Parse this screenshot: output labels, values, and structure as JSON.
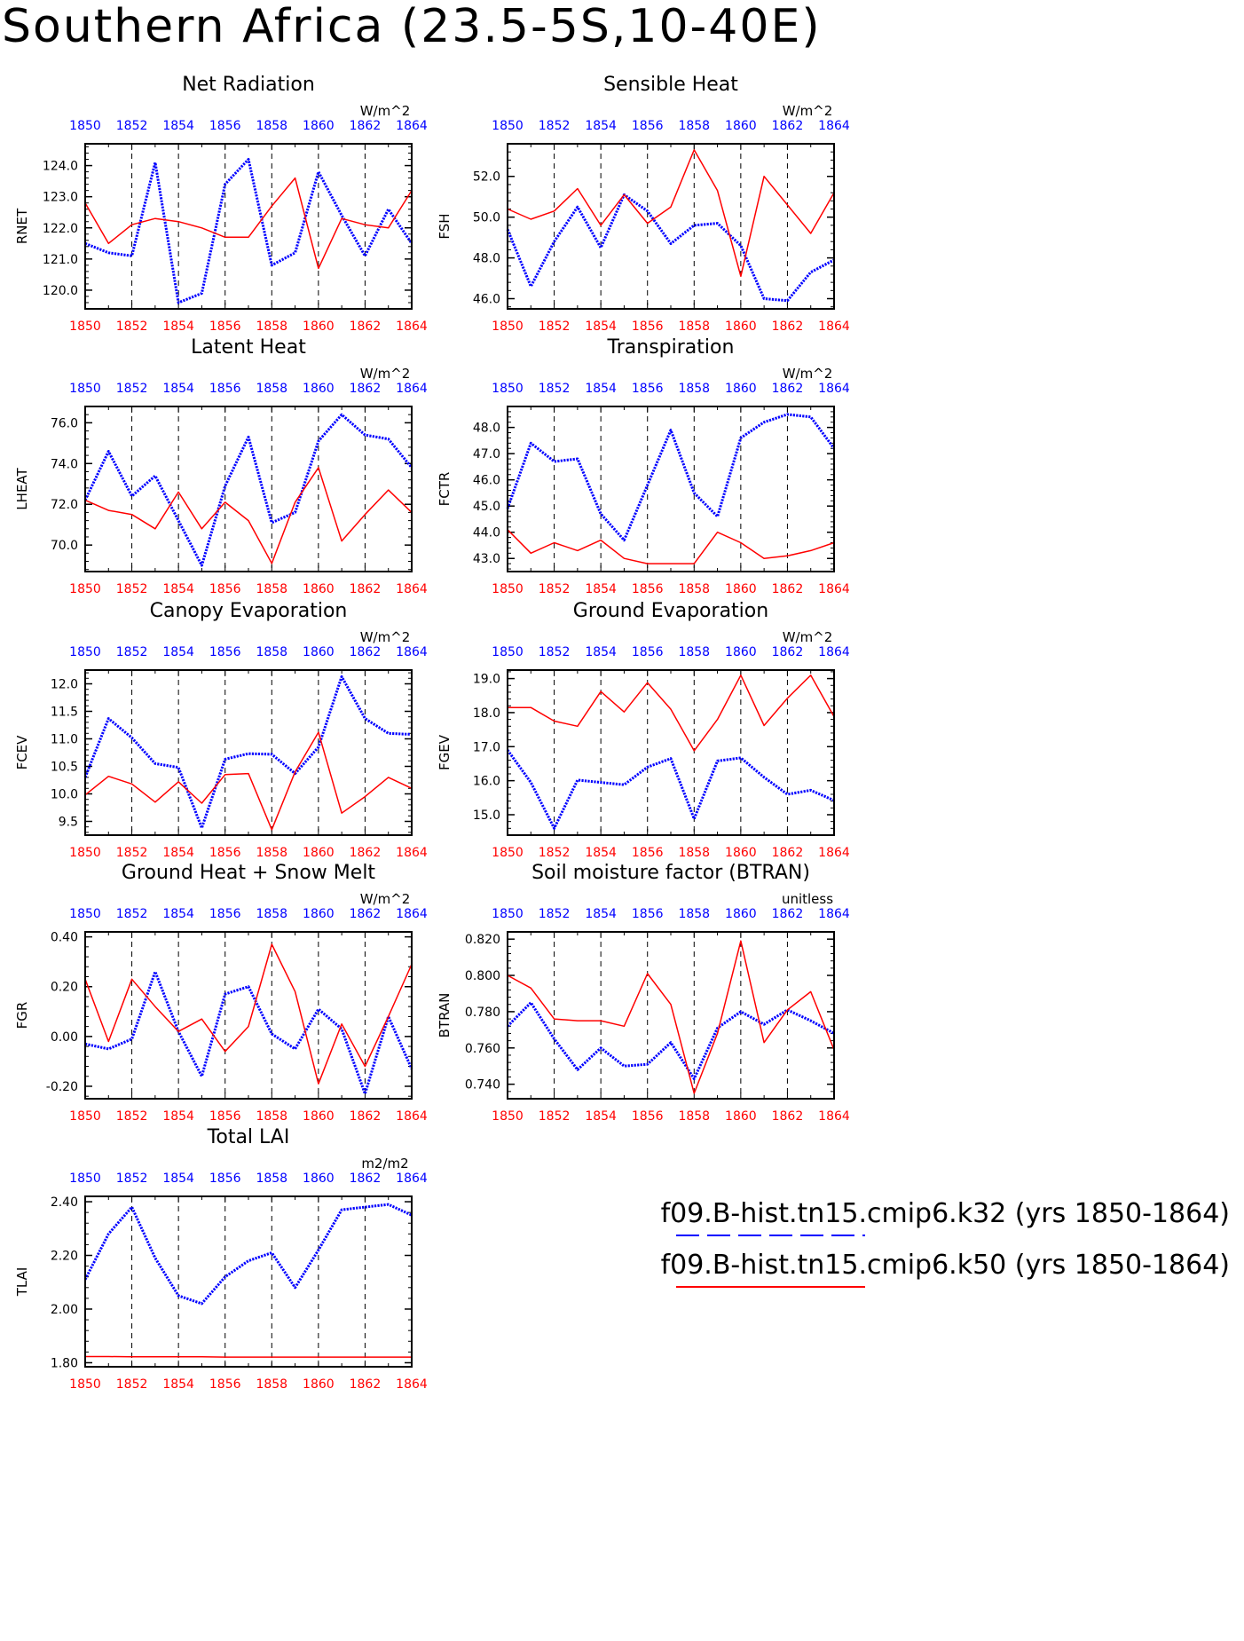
{
  "page": {
    "title": "Southern Africa (23.5-5S,10-40E)"
  },
  "legend": {
    "items": [
      {
        "label": "f09.B-hist.tn15.cmip6.k32 (yrs 1850-1864)",
        "color": "#0000ff",
        "style": "dashed"
      },
      {
        "label": "f09.B-hist.tn15.cmip6.k50 (yrs 1850-1864)",
        "color": "#ff0000",
        "style": "solid"
      }
    ]
  },
  "chart_data": [
    {
      "type": "line",
      "title": "Net Radiation",
      "ylabel": "RNET",
      "units": "W/m^2",
      "ylim": [
        119.4,
        124.7
      ],
      "yticks": [
        120.0,
        121.0,
        122.0,
        123.0,
        124.0
      ],
      "ytick_labels": [
        "120.0",
        "121.0",
        "122.0",
        "123.0",
        "124.0"
      ],
      "x": [
        1850,
        1851,
        1852,
        1853,
        1854,
        1855,
        1856,
        1857,
        1858,
        1859,
        1860,
        1861,
        1862,
        1863,
        1864
      ],
      "x_ticks": [
        1850,
        1852,
        1854,
        1856,
        1858,
        1860,
        1862,
        1864
      ],
      "series": [
        {
          "color": "#0000ff",
          "style": "dotted",
          "values": [
            121.5,
            121.2,
            121.1,
            124.1,
            119.6,
            119.9,
            123.4,
            124.2,
            120.8,
            121.2,
            123.8,
            122.4,
            121.1,
            122.6,
            121.5
          ]
        },
        {
          "color": "#ff0000",
          "style": "solid",
          "values": [
            122.8,
            121.5,
            122.1,
            122.3,
            122.2,
            122.0,
            121.7,
            121.7,
            122.7,
            123.6,
            120.7,
            122.3,
            122.1,
            122.0,
            123.2
          ]
        }
      ]
    },
    {
      "type": "line",
      "title": "Sensible Heat",
      "ylabel": "FSH",
      "units": "W/m^2",
      "ylim": [
        45.5,
        53.6
      ],
      "yticks": [
        46.0,
        48.0,
        50.0,
        52.0
      ],
      "ytick_labels": [
        "46.0",
        "48.0",
        "50.0",
        "52.0"
      ],
      "x": [
        1850,
        1851,
        1852,
        1853,
        1854,
        1855,
        1856,
        1857,
        1858,
        1859,
        1860,
        1861,
        1862,
        1863,
        1864
      ],
      "x_ticks": [
        1850,
        1852,
        1854,
        1856,
        1858,
        1860,
        1862,
        1864
      ],
      "series": [
        {
          "color": "#0000ff",
          "style": "dotted",
          "values": [
            49.4,
            46.6,
            48.8,
            50.5,
            48.5,
            51.1,
            50.3,
            48.7,
            49.6,
            49.7,
            48.6,
            46.0,
            45.9,
            47.3,
            47.9
          ]
        },
        {
          "color": "#ff0000",
          "style": "solid",
          "values": [
            50.4,
            49.9,
            50.3,
            51.4,
            49.6,
            51.1,
            49.7,
            50.5,
            53.3,
            51.3,
            47.1,
            52.0,
            50.6,
            49.2,
            51.2
          ]
        }
      ]
    },
    {
      "type": "line",
      "title": "Latent Heat",
      "ylabel": "LHEAT",
      "units": "W/m^2",
      "ylim": [
        68.7,
        76.8
      ],
      "yticks": [
        70.0,
        72.0,
        74.0,
        76.0
      ],
      "ytick_labels": [
        "70.0",
        "72.0",
        "74.0",
        "76.0"
      ],
      "x": [
        1850,
        1851,
        1852,
        1853,
        1854,
        1855,
        1856,
        1857,
        1858,
        1859,
        1860,
        1861,
        1862,
        1863,
        1864
      ],
      "x_ticks": [
        1850,
        1852,
        1854,
        1856,
        1858,
        1860,
        1862,
        1864
      ],
      "series": [
        {
          "color": "#0000ff",
          "style": "dotted",
          "values": [
            72.2,
            74.6,
            72.4,
            73.4,
            71.2,
            69.0,
            72.9,
            75.3,
            71.1,
            71.6,
            75.1,
            76.4,
            75.4,
            75.2,
            73.8
          ]
        },
        {
          "color": "#ff0000",
          "style": "solid",
          "values": [
            72.2,
            71.7,
            71.5,
            70.8,
            72.6,
            70.8,
            72.1,
            71.2,
            69.1,
            72.1,
            73.8,
            70.2,
            71.5,
            72.7,
            71.6
          ]
        }
      ]
    },
    {
      "type": "line",
      "title": "Transpiration",
      "ylabel": "FCTR",
      "units": "W/m^2",
      "ylim": [
        42.5,
        48.8
      ],
      "yticks": [
        43.0,
        44.0,
        45.0,
        46.0,
        47.0,
        48.0
      ],
      "ytick_labels": [
        "43.0",
        "44.0",
        "45.0",
        "46.0",
        "47.0",
        "48.0"
      ],
      "x": [
        1850,
        1851,
        1852,
        1853,
        1854,
        1855,
        1856,
        1857,
        1858,
        1859,
        1860,
        1861,
        1862,
        1863,
        1864
      ],
      "x_ticks": [
        1850,
        1852,
        1854,
        1856,
        1858,
        1860,
        1862,
        1864
      ],
      "series": [
        {
          "color": "#0000ff",
          "style": "dotted",
          "values": [
            44.9,
            47.4,
            46.7,
            46.8,
            44.7,
            43.7,
            45.8,
            47.9,
            45.5,
            44.6,
            47.6,
            48.2,
            48.5,
            48.4,
            47.2
          ]
        },
        {
          "color": "#ff0000",
          "style": "solid",
          "values": [
            44.1,
            43.2,
            43.6,
            43.3,
            43.7,
            43.0,
            42.8,
            42.8,
            42.8,
            44.0,
            43.6,
            43.0,
            43.1,
            43.3,
            43.6
          ]
        }
      ]
    },
    {
      "type": "line",
      "title": "Canopy Evaporation",
      "ylabel": "FCEV",
      "units": "W/m^2",
      "ylim": [
        9.25,
        12.25
      ],
      "yticks": [
        9.5,
        10.0,
        10.5,
        11.0,
        11.5,
        12.0
      ],
      "ytick_labels": [
        "9.5",
        "10.0",
        "10.5",
        "11.0",
        "11.5",
        "12.0"
      ],
      "x": [
        1850,
        1851,
        1852,
        1853,
        1854,
        1855,
        1856,
        1857,
        1858,
        1859,
        1860,
        1861,
        1862,
        1863,
        1864
      ],
      "x_ticks": [
        1850,
        1852,
        1854,
        1856,
        1858,
        1860,
        1862,
        1864
      ],
      "series": [
        {
          "color": "#0000ff",
          "style": "dotted",
          "values": [
            10.3,
            11.37,
            11.02,
            10.55,
            10.48,
            9.38,
            10.63,
            10.73,
            10.72,
            10.37,
            10.85,
            12.13,
            11.37,
            11.1,
            11.08
          ]
        },
        {
          "color": "#ff0000",
          "style": "solid",
          "values": [
            9.98,
            10.32,
            10.18,
            9.85,
            10.22,
            9.83,
            10.35,
            10.37,
            9.35,
            10.4,
            11.12,
            9.65,
            9.95,
            10.3,
            10.1
          ]
        }
      ]
    },
    {
      "type": "line",
      "title": "Ground Evaporation",
      "ylabel": "FGEV",
      "units": "W/m^2",
      "ylim": [
        14.4,
        19.25
      ],
      "yticks": [
        15.0,
        16.0,
        17.0,
        18.0,
        19.0
      ],
      "ytick_labels": [
        "15.0",
        "16.0",
        "17.0",
        "18.0",
        "19.0"
      ],
      "x": [
        1850,
        1851,
        1852,
        1853,
        1854,
        1855,
        1856,
        1857,
        1858,
        1859,
        1860,
        1861,
        1862,
        1863,
        1864
      ],
      "x_ticks": [
        1850,
        1852,
        1854,
        1856,
        1858,
        1860,
        1862,
        1864
      ],
      "series": [
        {
          "color": "#0000ff",
          "style": "dotted",
          "values": [
            16.9,
            15.95,
            14.6,
            16.02,
            15.95,
            15.88,
            16.4,
            16.65,
            14.88,
            16.58,
            16.67,
            16.1,
            15.6,
            15.72,
            15.42
          ]
        },
        {
          "color": "#ff0000",
          "style": "solid",
          "values": [
            18.15,
            18.15,
            17.75,
            17.6,
            18.62,
            18.02,
            18.88,
            18.1,
            16.88,
            17.8,
            19.1,
            17.62,
            18.42,
            19.1,
            17.88
          ]
        }
      ]
    },
    {
      "type": "line",
      "title": "Ground Heat + Snow Melt",
      "ylabel": "FGR",
      "units": "W/m^2",
      "ylim": [
        -0.25,
        0.42
      ],
      "yticks": [
        -0.2,
        0.0,
        0.2,
        0.4
      ],
      "ytick_labels": [
        "-0.20",
        "0.00",
        "0.20",
        "0.40"
      ],
      "x": [
        1850,
        1851,
        1852,
        1853,
        1854,
        1855,
        1856,
        1857,
        1858,
        1859,
        1860,
        1861,
        1862,
        1863,
        1864
      ],
      "x_ticks": [
        1850,
        1852,
        1854,
        1856,
        1858,
        1860,
        1862,
        1864
      ],
      "series": [
        {
          "color": "#0000ff",
          "style": "dotted",
          "values": [
            -0.03,
            -0.05,
            -0.01,
            0.26,
            0.02,
            -0.16,
            0.17,
            0.2,
            0.01,
            -0.05,
            0.11,
            0.03,
            -0.23,
            0.08,
            -0.13
          ]
        },
        {
          "color": "#ff0000",
          "style": "solid",
          "values": [
            0.23,
            -0.02,
            0.23,
            0.12,
            0.02,
            0.07,
            -0.06,
            0.04,
            0.37,
            0.18,
            -0.19,
            0.05,
            -0.12,
            0.08,
            0.29
          ]
        }
      ]
    },
    {
      "type": "line",
      "title": "Soil moisture factor (BTRAN)",
      "ylabel": "BTRAN",
      "units": "unitless",
      "ylim": [
        0.732,
        0.824
      ],
      "yticks": [
        0.74,
        0.76,
        0.78,
        0.8,
        0.82
      ],
      "ytick_labels": [
        "0.740",
        "0.760",
        "0.780",
        "0.800",
        "0.820"
      ],
      "x": [
        1850,
        1851,
        1852,
        1853,
        1854,
        1855,
        1856,
        1857,
        1858,
        1859,
        1860,
        1861,
        1862,
        1863,
        1864
      ],
      "x_ticks": [
        1850,
        1852,
        1854,
        1856,
        1858,
        1860,
        1862,
        1864
      ],
      "series": [
        {
          "color": "#0000ff",
          "style": "dotted",
          "values": [
            0.772,
            0.785,
            0.765,
            0.748,
            0.76,
            0.75,
            0.751,
            0.763,
            0.743,
            0.771,
            0.78,
            0.773,
            0.781,
            0.775,
            0.768
          ]
        },
        {
          "color": "#ff0000",
          "style": "solid",
          "values": [
            0.8,
            0.793,
            0.776,
            0.775,
            0.775,
            0.772,
            0.801,
            0.784,
            0.735,
            0.768,
            0.819,
            0.763,
            0.781,
            0.791,
            0.759
          ]
        }
      ]
    },
    {
      "type": "line",
      "title": "Total LAI",
      "ylabel": "TLAI",
      "units": "m2/m2",
      "ylim": [
        1.785,
        2.42
      ],
      "yticks": [
        1.8,
        2.0,
        2.2,
        2.4
      ],
      "ytick_labels": [
        "1.80",
        "2.00",
        "2.20",
        "2.40"
      ],
      "x": [
        1850,
        1851,
        1852,
        1853,
        1854,
        1855,
        1856,
        1857,
        1858,
        1859,
        1860,
        1861,
        1862,
        1863,
        1864
      ],
      "x_ticks": [
        1850,
        1852,
        1854,
        1856,
        1858,
        1860,
        1862,
        1864
      ],
      "series": [
        {
          "color": "#0000ff",
          "style": "dotted",
          "values": [
            2.11,
            2.28,
            2.38,
            2.19,
            2.05,
            2.02,
            2.12,
            2.18,
            2.21,
            2.08,
            2.22,
            2.37,
            2.38,
            2.39,
            2.35
          ]
        },
        {
          "color": "#ff0000",
          "style": "solid",
          "values": [
            1.823,
            1.823,
            1.822,
            1.822,
            1.822,
            1.822,
            1.821,
            1.821,
            1.821,
            1.821,
            1.821,
            1.821,
            1.821,
            1.821,
            1.821
          ]
        }
      ]
    }
  ]
}
